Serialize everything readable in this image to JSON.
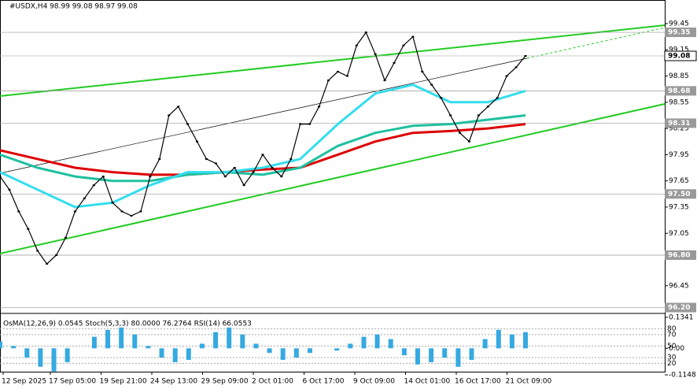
{
  "header": "#USDX,H4  98.99 99.08 98.97 99.08",
  "main": {
    "ylim": [
      96.16,
      99.72
    ],
    "yticks": [
      99.45,
      99.15,
      98.85,
      98.55,
      98.25,
      97.95,
      97.65,
      97.35,
      97.05,
      96.45
    ],
    "levels": [
      99.35,
      99.08,
      98.68,
      98.31,
      {
        "value": 97.5,
        "label": "97.50"
      },
      {
        "value": 96.8,
        "label": "96.80"
      },
      {
        "value": 96.2,
        "label": "96.20"
      }
    ],
    "close": [
      97.7,
      97.55,
      97.3,
      97.1,
      96.85,
      96.7,
      96.8,
      97.0,
      97.3,
      97.45,
      97.6,
      97.7,
      97.4,
      97.3,
      97.25,
      97.3,
      97.7,
      97.9,
      98.4,
      98.5,
      98.3,
      98.1,
      97.9,
      97.85,
      97.7,
      97.8,
      97.6,
      97.75,
      97.95,
      97.8,
      97.7,
      97.9,
      98.3,
      98.3,
      98.5,
      98.8,
      98.9,
      98.85,
      99.2,
      99.35,
      99.1,
      98.8,
      99.0,
      99.2,
      99.3,
      98.9,
      98.75,
      98.6,
      98.4,
      98.2,
      98.1,
      98.4,
      98.5,
      98.6,
      98.85,
      98.95,
      99.08
    ],
    "ma_fast": [
      97.75,
      97.55,
      97.35,
      97.4,
      97.6,
      97.75,
      97.75,
      97.8,
      97.9,
      98.3,
      98.65,
      98.75,
      98.55,
      98.55,
      98.68
    ],
    "ma_mid": [
      97.95,
      97.8,
      97.7,
      97.65,
      97.65,
      97.72,
      97.75,
      97.72,
      97.8,
      98.05,
      98.2,
      98.28,
      98.3,
      98.35,
      98.4
    ],
    "ma_slow": [
      98.0,
      97.9,
      97.8,
      97.75,
      97.72,
      97.72,
      97.75,
      97.78,
      97.8,
      97.95,
      98.1,
      98.2,
      98.22,
      98.25,
      98.3
    ]
  },
  "indicator": {
    "title": "OsMA(12,26,9) 0.0545  Stoch(5,3,3) 80.0000 76.2764  RSI(14) 66.0553",
    "osma_lim": [
      -0.1148,
      0.1341
    ],
    "osma_ticks": [
      0.1341,
      {
        "value": 0,
        "label": "0.00"
      },
      -0.1148
    ],
    "stoch_lim": [
      0,
      100
    ],
    "stoch_ticks": [
      80,
      70,
      50,
      30,
      20
    ],
    "osma": [
      0.03,
      0.01,
      -0.04,
      -0.08,
      -0.1,
      -0.06,
      0.0,
      0.05,
      0.08,
      0.09,
      0.06,
      0.01,
      -0.04,
      -0.06,
      -0.05,
      0.02,
      0.07,
      0.09,
      0.06,
      0.02,
      -0.02,
      -0.05,
      -0.04,
      -0.02,
      0.0,
      -0.01,
      0.02,
      0.05,
      0.06,
      0.04,
      -0.03,
      -0.07,
      -0.06,
      -0.04,
      -0.08,
      -0.05,
      0.04,
      0.08,
      0.06,
      0.07
    ]
  },
  "time_labels": [
    "12 Sep 2025",
    "17 Sep 05:00",
    "19 Sep 21:00",
    "24 Sep 13:00",
    "29 Sep 09:00",
    "2 Oct 01:00",
    "6 Oct 17:00",
    "9 Oct 09:00",
    "14 Oct 01:00",
    "16 Oct 17:00",
    "21 Oct 09:00"
  ]
}
